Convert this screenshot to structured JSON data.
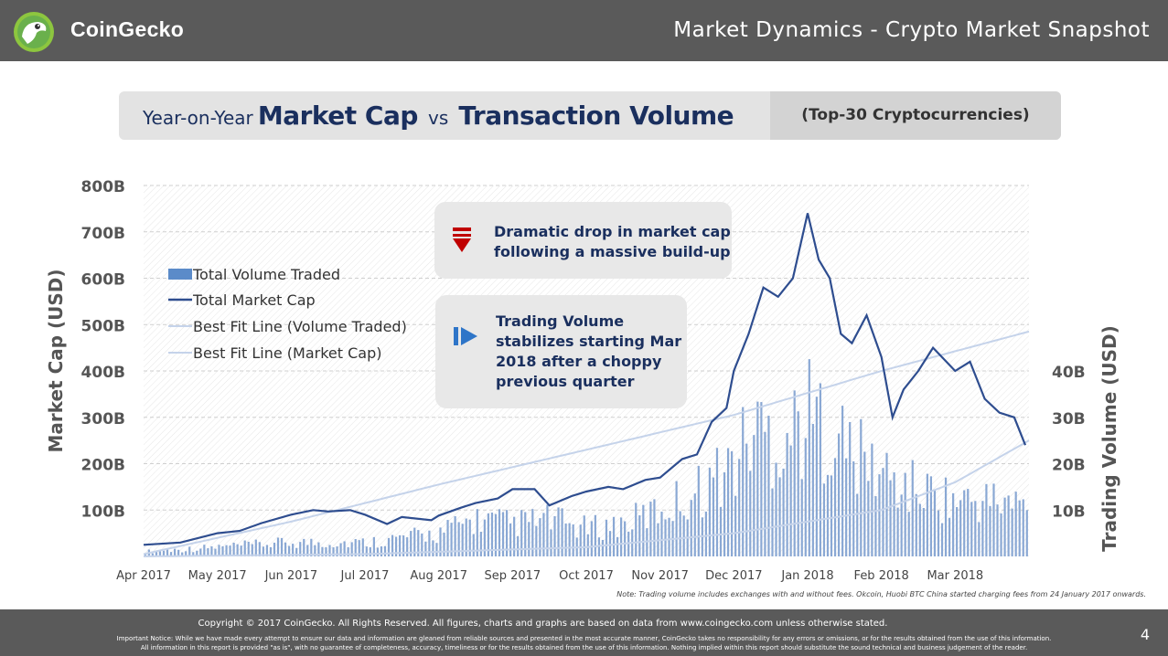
{
  "header": {
    "brand": "CoinGecko",
    "slide_title": "Market Dynamics - Crypto Market Snapshot"
  },
  "title": {
    "prefix": "Year-on-Year",
    "bold1": "Market Cap",
    "vs": "vs",
    "bold2": "Transaction Volume",
    "sub": "(Top-30 Cryptocurrencies)"
  },
  "callouts": {
    "drop": [
      "Dramatic drop in market cap",
      "following a massive build-up"
    ],
    "stable": [
      "Trading Volume",
      "stabilizes starting Mar",
      "2018 after a choppy",
      "previous quarter"
    ]
  },
  "note": "Note:  Trading volume includes exchanges with and without fees. Okcoin, Huobi BTC China started charging fees from 24 January 2017 onwards.",
  "footer": {
    "copyright": "Copyright © 2017 CoinGecko. All Rights Reserved. All figures, charts and graphs are based on data from www.coingecko.com unless otherwise stated.",
    "notice1": "Important Notice: While we have made every attempt to ensure our data and information are gleaned from reliable sources and presented in the most accurate manner, CoinGecko takes no responsibility for any errors or omissions, or for the results obtained from the use of this information.",
    "notice2": "All information in this report is provided \"as is\", with no guarantee of completeness, accuracy, timeliness or for the results obtained from the use of this information. Nothing implied within this report should substitute the sound technical and business judgement of the reader.",
    "page": "4"
  },
  "colors": {
    "cap": "#2e4d8f",
    "volume": "#7d9fcf",
    "fit": "#c5d3ea",
    "legend_bar": "#5b8bc9"
  },
  "chart_data": {
    "type": "bar",
    "ylabel": "Market Cap (USD)",
    "y2label": "Trading Volume (USD)",
    "y_ticks": [
      "800B",
      "700B",
      "600B",
      "500B",
      "400B",
      "300B",
      "200B",
      "100B"
    ],
    "y2_ticks": [
      "40B",
      "30B",
      "20B",
      "10B"
    ],
    "x_ticks": [
      "Apr 2017",
      "May 2017",
      "Jun 2017",
      "Jul 2017",
      "Aug 2017",
      "Sep 2017",
      "Oct 2017",
      "Nov 2017",
      "Dec 2017",
      "Jan 2018",
      "Feb 2018",
      "Mar 2018"
    ],
    "ylim": [
      0,
      800
    ],
    "y2lim": [
      0,
      80
    ],
    "legend": [
      "Total Volume Traded",
      "Total Market Cap",
      "Best Fit Line (Volume Traded)",
      "Best Fit Line (Market Cap)"
    ],
    "legend_position": "left",
    "market_cap": {
      "name": "Total Market Cap",
      "x_month": [
        0,
        0.5,
        1,
        1.3,
        1.6,
        2,
        2.3,
        2.5,
        2.8,
        3,
        3.3,
        3.5,
        3.9,
        4,
        4.3,
        4.5,
        4.8,
        5,
        5.3,
        5.5,
        5.8,
        6,
        6.3,
        6.5,
        6.8,
        7,
        7.3,
        7.5,
        7.7,
        7.9,
        8,
        8.2,
        8.4,
        8.6,
        8.8,
        9,
        9.15,
        9.3,
        9.45,
        9.6,
        9.8,
        10,
        10.15,
        10.3,
        10.5,
        10.7,
        11,
        11.2,
        11.4,
        11.6,
        11.8,
        11.95
      ],
      "values_b": [
        25,
        30,
        50,
        55,
        72,
        90,
        100,
        97,
        100,
        90,
        70,
        85,
        78,
        88,
        105,
        115,
        125,
        145,
        145,
        110,
        130,
        140,
        150,
        145,
        165,
        170,
        210,
        220,
        290,
        320,
        400,
        480,
        580,
        560,
        600,
        740,
        640,
        600,
        480,
        460,
        520,
        430,
        300,
        360,
        400,
        450,
        400,
        420,
        340,
        310,
        300,
        240
      ],
      "ylim": [
        0,
        800
      ]
    },
    "volume_traded": {
      "name": "Total Volume Traded",
      "x_month": [
        0,
        1,
        2,
        3,
        4,
        4.5,
        5,
        5.5,
        6,
        6.5,
        7,
        7.5,
        8,
        8.3,
        8.6,
        9,
        9.3,
        9.6,
        10,
        10.3,
        10.6,
        11,
        11.5,
        11.95
      ],
      "values_b": [
        1,
        2,
        3,
        3,
        5,
        8,
        7,
        8,
        6,
        7,
        10,
        14,
        20,
        28,
        25,
        30,
        28,
        22,
        18,
        15,
        14,
        12,
        12,
        11
      ],
      "ylim": [
        0,
        80
      ]
    },
    "fit_market_cap": {
      "name": "Best Fit Line (Market Cap)",
      "x_month": [
        0,
        2,
        4,
        6,
        8,
        10,
        12
      ],
      "values_b": [
        5,
        75,
        155,
        230,
        305,
        400,
        485
      ]
    },
    "fit_volume": {
      "name": "Best Fit Line (Volume Traded)",
      "x_month": [
        0,
        3,
        6,
        8,
        10,
        11,
        12
      ],
      "values_b": [
        0,
        0.5,
        2,
        5,
        10,
        16,
        25
      ]
    }
  }
}
